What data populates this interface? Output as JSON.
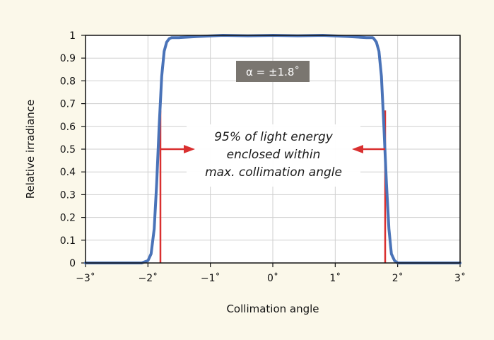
{
  "chart_data": {
    "type": "line",
    "title": "",
    "xlabel": "Collimation angle",
    "ylabel": "Relative irradiance",
    "xlim": [
      -3,
      3
    ],
    "ylim": [
      0,
      1
    ],
    "xticks": [
      -3,
      -2,
      -1,
      0,
      1,
      2,
      3
    ],
    "xtick_labels": [
      "−3˚",
      "−2˚",
      "−1˚",
      "0˚",
      "1˚",
      "2˚",
      "3˚"
    ],
    "yticks": [
      0,
      0.1,
      0.2,
      0.3,
      0.4,
      0.5,
      0.6,
      0.7,
      0.8,
      0.9,
      1
    ],
    "ytick_labels": [
      "0",
      "0.1",
      "0.2",
      "0.3",
      "0.4",
      "0.5",
      "0.6",
      "0.7",
      "0.8",
      "0.9",
      "1"
    ],
    "grid": true,
    "series": [
      {
        "color": "#4a73b8",
        "x": [
          -3.0,
          -2.5,
          -2.1,
          -2.0,
          -1.95,
          -1.9,
          -1.86,
          -1.82,
          -1.78,
          -1.74,
          -1.7,
          -1.66,
          -1.62,
          -1.6,
          -1.5,
          -1.2,
          -0.8,
          -0.4,
          0.0,
          0.4,
          0.8,
          1.2,
          1.5,
          1.6,
          1.62,
          1.66,
          1.7,
          1.74,
          1.78,
          1.82,
          1.86,
          1.9,
          1.95,
          2.0,
          2.1,
          2.5,
          3.0
        ],
        "y": [
          0.0,
          0.0,
          0.0,
          0.01,
          0.04,
          0.15,
          0.35,
          0.6,
          0.82,
          0.93,
          0.97,
          0.985,
          0.99,
          0.99,
          0.99,
          0.995,
          1.0,
          0.998,
          1.0,
          0.998,
          1.0,
          0.995,
          0.99,
          0.99,
          0.985,
          0.97,
          0.93,
          0.82,
          0.6,
          0.35,
          0.15,
          0.04,
          0.01,
          0.0,
          0.0,
          0.0,
          0.0
        ]
      }
    ],
    "markers": [
      {
        "x": -1.8,
        "color": "#d93030"
      },
      {
        "x": 1.8,
        "color": "#d93030"
      }
    ],
    "arrow_y": 0.5,
    "annotations": {
      "badge": "α = ±1.8˚",
      "note_lines": [
        "95% of light energy",
        "enclosed within",
        "max. collimation angle"
      ]
    }
  }
}
